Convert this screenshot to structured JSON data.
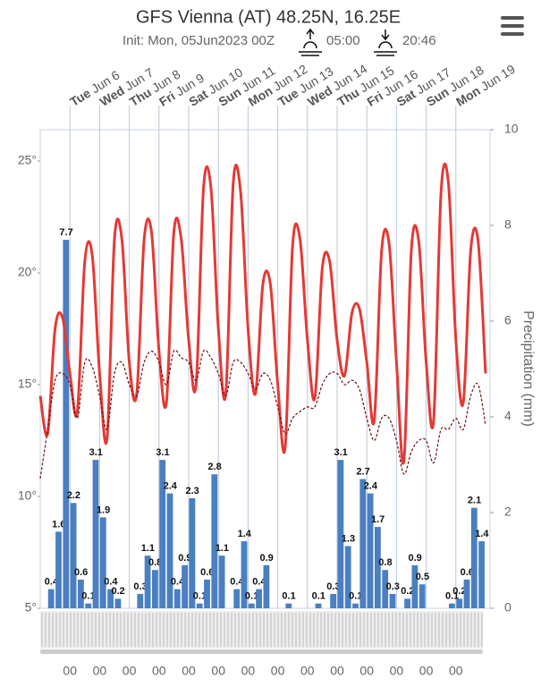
{
  "chart_data": {
    "type": "line",
    "title": "GFS Vienna (AT) 48.25N, 16.25E",
    "subtitle": "Init: Mon, 05Jun2023 00Z",
    "sunrise": "05:00",
    "sunset": "20:46",
    "days": [
      {
        "day": "Tue",
        "date": "Jun 6"
      },
      {
        "day": "Wed",
        "date": "Jun 7"
      },
      {
        "day": "Thu",
        "date": "Jun 8"
      },
      {
        "day": "Fri",
        "date": "Jun 9"
      },
      {
        "day": "Sat",
        "date": "Jun 10"
      },
      {
        "day": "Sun",
        "date": "Jun 11"
      },
      {
        "day": "Mon",
        "date": "Jun 12"
      },
      {
        "day": "Tue",
        "date": "Jun 13"
      },
      {
        "day": "Wed",
        "date": "Jun 14"
      },
      {
        "day": "Thu",
        "date": "Jun 15"
      },
      {
        "day": "Fri",
        "date": "Jun 16"
      },
      {
        "day": "Sat",
        "date": "Jun 17"
      },
      {
        "day": "Sun",
        "date": "Jun 18"
      },
      {
        "day": "Mon",
        "date": "Jun 19"
      }
    ],
    "time_labels": [
      "00",
      "00",
      "00",
      "00",
      "00",
      "00",
      "00",
      "00",
      "00",
      "00",
      "00",
      "00",
      "00",
      "00"
    ],
    "ylim": [
      5,
      26.4
    ],
    "yticks": [
      {
        "value": 5,
        "label": "5°"
      },
      {
        "value": 10,
        "label": "10°"
      },
      {
        "value": 15,
        "label": "15°"
      },
      {
        "value": 20,
        "label": "20°"
      },
      {
        "value": 25,
        "label": "25°"
      }
    ],
    "y2lim": [
      0,
      10
    ],
    "y2ticks": [
      0,
      2,
      4,
      6,
      8,
      10
    ],
    "y2label": "Precipitation (mm)",
    "series": [
      {
        "color": "#e53935",
        "values": [
          14.5,
          12.8,
          17.5,
          18.0,
          15.5,
          13.8,
          20.5,
          20.8,
          15.5,
          12.6,
          21.5,
          21.5,
          16,
          14.6,
          21.5,
          21.8,
          16.5,
          14.2,
          21.8,
          21.5,
          17,
          15.0,
          23.8,
          23.8,
          17.5,
          14.6,
          24.0,
          23.6,
          17.5,
          14.6,
          19.5,
          19.5,
          15,
          12.2,
          21.2,
          21.5,
          17,
          14.4,
          20.2,
          20.5,
          17,
          15.4,
          18.2,
          18.4,
          16,
          13.4,
          21.0,
          21.3,
          16,
          11.6,
          21.0,
          21.4,
          16,
          13.4,
          23.6,
          24.0,
          17,
          14.2,
          21.0,
          21.4,
          15.5
        ]
      },
      {
        "color": "#6d0f0f",
        "dashed": true,
        "values": [
          10.8,
          13,
          15.2,
          15.5,
          15,
          13.5,
          16,
          15.8,
          14.5,
          13,
          15.5,
          16,
          15,
          14.5,
          16,
          16.5,
          16,
          15,
          16.5,
          16.2,
          16,
          15.2,
          16.5,
          16.2,
          15.5,
          14.5,
          16,
          16,
          15.5,
          14.8,
          15.5,
          15.2,
          14,
          12.8,
          13.5,
          13.8,
          14,
          14,
          15,
          15.5,
          15.5,
          15,
          15.2,
          14.8,
          13.5,
          12.5,
          13.5,
          13.5,
          12.5,
          11,
          12,
          12.5,
          12.5,
          11.5,
          13,
          13,
          13.5,
          13,
          14.5,
          15,
          13.2
        ]
      },
      {
        "type": "bar",
        "axis": "y2",
        "color": "#4a7fc1",
        "values": [
          0,
          0.4,
          1.6,
          7.7,
          2.2,
          0.6,
          0.1,
          3.1,
          1.9,
          0.4,
          0.2,
          0,
          0,
          0.3,
          1.1,
          0.8,
          3.1,
          2.4,
          0.4,
          0.9,
          2.3,
          0.1,
          0.6,
          2.8,
          1.1,
          0,
          0.4,
          1.4,
          0.1,
          0.4,
          0.9,
          0,
          0,
          0.1,
          0,
          0,
          0,
          0.1,
          0,
          0.3,
          3.1,
          1.3,
          0.1,
          2.7,
          2.4,
          1.7,
          0.8,
          0.3,
          0,
          0.2,
          0.9,
          0.5,
          0,
          0,
          0,
          0.1,
          0.2,
          0.6,
          2.1,
          1.4
        ]
      }
    ]
  }
}
